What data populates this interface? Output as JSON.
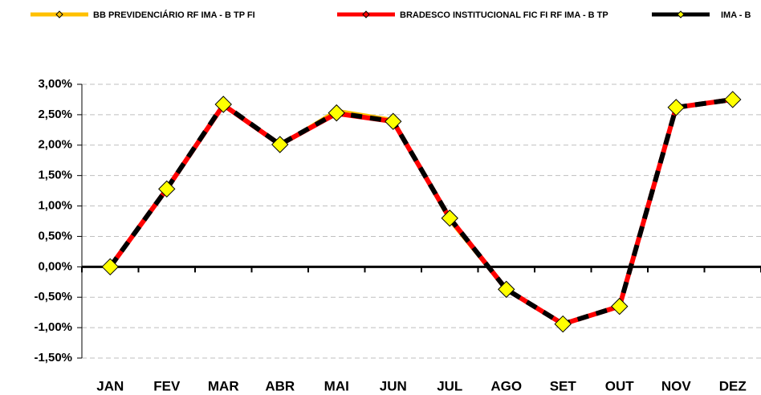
{
  "chart_data": {
    "type": "line",
    "categories": [
      "JAN",
      "FEV",
      "MAR",
      "ABR",
      "MAI",
      "JUN",
      "JUL",
      "AGO",
      "SET",
      "OUT",
      "NOV",
      "DEZ"
    ],
    "series": [
      {
        "name": "BB PREVIDENCIÁRIO RF IMA - B TP FI",
        "color": "#ffc000",
        "values": [
          0,
          1.27,
          2.65,
          2.0,
          2.57,
          2.42,
          0.76,
          -0.38,
          -0.95,
          -0.66,
          2.61,
          2.74
        ]
      },
      {
        "name": "BRADESCO INSTITUCIONAL FIC FI RF IMA - B TP",
        "color": "#ff0000",
        "values": [
          0,
          1.28,
          2.66,
          2.01,
          2.52,
          2.39,
          0.8,
          -0.37,
          -0.94,
          -0.65,
          2.62,
          2.75
        ]
      },
      {
        "name": "IMA - B",
        "color": "#000000",
        "marker_color": "#ffff00",
        "values": [
          0,
          1.28,
          2.67,
          2.01,
          2.53,
          2.39,
          0.8,
          -0.37,
          -0.94,
          -0.65,
          2.62,
          2.75
        ]
      }
    ],
    "ylim": [
      -1.5,
      3
    ],
    "yticks": [
      {
        "value": -1.5,
        "label": "-1,50%"
      },
      {
        "value": -1,
        "label": "-1,00%"
      },
      {
        "value": -0.5,
        "label": "-0,50%"
      },
      {
        "value": 0,
        "label": "0,00%"
      },
      {
        "value": 0.5,
        "label": "0,50%"
      },
      {
        "value": 1,
        "label": "1,00%"
      },
      {
        "value": 1.5,
        "label": "1,50%"
      },
      {
        "value": 2,
        "label": "2,00%"
      },
      {
        "value": 2.5,
        "label": "2,50%"
      },
      {
        "value": 3,
        "label": "3,00%"
      }
    ],
    "grid": true,
    "legend": "top"
  }
}
